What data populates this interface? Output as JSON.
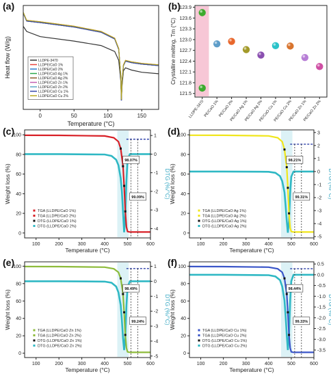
{
  "chart_data": [
    {
      "id": "a",
      "type": "line",
      "panel_label": "(a)",
      "xlabel": "Temperature (°C)",
      "ylabel": "Heat flow (W/g)",
      "xlim": [
        -25,
        175
      ],
      "xticks": [
        0,
        50,
        100,
        150
      ],
      "xtick_labels": [
        "0",
        "50",
        "100",
        "150"
      ],
      "legend_position": "bottom-left",
      "series": [
        {
          "name": "LLDPE-3470",
          "color": "#333333",
          "x": [
            -25,
            -20,
            0,
            50,
            90,
            110,
            116,
            119,
            120,
            121,
            123,
            126,
            135,
            150,
            175
          ],
          "y": [
            0.12,
            0.05,
            -0.02,
            -0.08,
            -0.14,
            -0.22,
            -0.34,
            -0.62,
            -0.88,
            -0.68,
            -0.48,
            -0.44,
            -0.47,
            -0.5,
            -0.52
          ]
        },
        {
          "name": "LLDPE/CaO 1%",
          "color": "#e8413c",
          "x": [
            -25,
            -20,
            0,
            50,
            90,
            110,
            116,
            119,
            120,
            121,
            123,
            126,
            135,
            150,
            175
          ],
          "y": [
            0.3,
            0.2,
            0.18,
            0.12,
            0.05,
            -0.04,
            -0.18,
            -0.55,
            -0.88,
            -0.62,
            -0.4,
            -0.34,
            -0.36,
            -0.38,
            -0.4
          ]
        },
        {
          "name": "LLDPE/CaO 2%",
          "color": "#2e7bd1",
          "x": [
            -25,
            -20,
            0,
            50,
            90,
            110,
            116,
            119,
            120,
            121,
            123,
            126,
            135,
            150,
            175
          ],
          "y": [
            0.3,
            0.19,
            0.17,
            0.11,
            0.04,
            -0.05,
            -0.19,
            -0.56,
            -0.88,
            -0.62,
            -0.41,
            -0.35,
            -0.37,
            -0.39,
            -0.41
          ]
        },
        {
          "name": "LLDPE/CaO Ag 1%",
          "color": "#2aa84a",
          "x": [
            -25,
            -20,
            0,
            50,
            90,
            110,
            116,
            119,
            120,
            121,
            123,
            126,
            135,
            150,
            175
          ],
          "y": [
            0.3,
            0.19,
            0.17,
            0.11,
            0.04,
            -0.05,
            -0.19,
            -0.56,
            -0.88,
            -0.62,
            -0.41,
            -0.35,
            -0.37,
            -0.39,
            -0.41
          ]
        },
        {
          "name": "LLDPE/CaO Ag 2%",
          "color": "#8b5a2b",
          "x": [
            -25,
            -20,
            0,
            50,
            90,
            110,
            116,
            119,
            120,
            121,
            123,
            126,
            135,
            150,
            175
          ],
          "y": [
            0.3,
            0.19,
            0.17,
            0.11,
            0.04,
            -0.05,
            -0.19,
            -0.56,
            -0.88,
            -0.62,
            -0.41,
            -0.35,
            -0.37,
            -0.39,
            -0.41
          ]
        },
        {
          "name": "LLDPE/CaO Zn 1%",
          "color": "#c05fb0",
          "x": [
            -25,
            -20,
            0,
            50,
            90,
            110,
            116,
            119,
            120,
            121,
            123,
            126,
            135,
            150,
            175
          ],
          "y": [
            0.3,
            0.19,
            0.17,
            0.11,
            0.04,
            -0.05,
            -0.19,
            -0.56,
            -0.88,
            -0.62,
            -0.41,
            -0.35,
            -0.37,
            -0.39,
            -0.41
          ]
        },
        {
          "name": "LLDPE/CaO Zn 2%",
          "color": "#5aa9c8",
          "x": [
            -25,
            -20,
            0,
            50,
            90,
            110,
            116,
            119,
            120,
            121,
            123,
            126,
            135,
            150,
            175
          ],
          "y": [
            0.3,
            0.19,
            0.17,
            0.11,
            0.04,
            -0.05,
            -0.19,
            -0.56,
            -0.88,
            -0.62,
            -0.41,
            -0.35,
            -0.37,
            -0.39,
            -0.41
          ]
        },
        {
          "name": "LLDPE/CaO Cu 1%",
          "color": "#3344a8",
          "x": [
            -25,
            -20,
            0,
            50,
            90,
            110,
            116,
            119,
            120,
            121,
            123,
            126,
            135,
            150,
            175
          ],
          "y": [
            0.3,
            0.19,
            0.17,
            0.11,
            0.04,
            -0.05,
            -0.19,
            -0.56,
            -0.88,
            -0.62,
            -0.41,
            -0.35,
            -0.37,
            -0.39,
            -0.41
          ]
        },
        {
          "name": "LLDPE/CaO Cu 2%",
          "color": "#b8a820",
          "x": [
            -25,
            -20,
            0,
            50,
            90,
            110,
            116,
            119,
            120,
            121,
            123,
            126,
            135,
            150,
            175
          ],
          "y": [
            0.31,
            0.2,
            0.18,
            0.12,
            0.05,
            -0.04,
            -0.18,
            -0.55,
            -0.87,
            -0.61,
            -0.4,
            -0.34,
            -0.36,
            -0.38,
            -0.4
          ]
        }
      ],
      "ylim": [
        -1.0,
        0.4
      ]
    },
    {
      "id": "b",
      "type": "scatter",
      "panel_label": "(b)",
      "ylabel": "Crystalline melting, Tm (°C)",
      "ylim": [
        121.4,
        123.95
      ],
      "yticks": [
        121.5,
        121.8,
        122.1,
        122.4,
        122.7,
        123.0,
        123.3,
        123.6,
        123.9
      ],
      "ytick_labels": [
        "121.5",
        "121.8",
        "122.1",
        "122.4",
        "122.7",
        "123.0",
        "123.3",
        "123.6",
        "123.9"
      ],
      "categories": [
        "LLDPE-3470",
        "PE/CaO 1%",
        "PE/CaO 2%",
        "PE/CaO Ag 1%",
        "PE/CaO Ag 2%",
        "PE/CaO Cu 1%",
        "PE/CaO Cu 2%",
        "PE/CaO Zn 1%",
        "PE/CaO Zn 2%"
      ],
      "values": [
        [
          123.75,
          121.65
        ],
        [
          122.88
        ],
        [
          122.95
        ],
        [
          122.72
        ],
        [
          122.57
        ],
        [
          122.83
        ],
        [
          122.82
        ],
        [
          122.5
        ],
        [
          122.25
        ]
      ],
      "colors": [
        "#3dab2e",
        "#5f9ec9",
        "#e8672c",
        "#a39a2a",
        "#8a4fb0",
        "#2bc3c9",
        "#d8742e",
        "#b77ed6",
        "#cf4fa4"
      ],
      "highlight_color": "#f7c7d6"
    },
    {
      "id": "c",
      "type": "line",
      "panel_label": "(c)",
      "xlabel": "Temperature (°C)",
      "ylabel": "Weight loss (%)",
      "y2label": "DTG (%/°C)",
      "xlim": [
        50,
        600
      ],
      "xticks": [
        100,
        200,
        300,
        400,
        500,
        600
      ],
      "ylim": [
        -5,
        105
      ],
      "yticks": [
        0,
        20,
        40,
        60,
        80,
        100
      ],
      "y2lim": [
        -4.5,
        1.3
      ],
      "y2ticks": [
        1,
        0,
        -1,
        -2,
        -3,
        -4
      ],
      "annotations": [
        "98.07%",
        "99.09%"
      ],
      "legend": [
        "TGA (LLDPE/CaO 1%)",
        "TGA (LLDPE/CaO 2%)",
        "DTG (LLDPE/CaO 1%)",
        "DTG (LLDPE/CaO 2%)"
      ],
      "tga": {
        "color": "#d81f26",
        "x": [
          50,
          200,
          400,
          440,
          460,
          470,
          480,
          485,
          490,
          495,
          500,
          510,
          600
        ],
        "y": [
          99.5,
          99.4,
          98.8,
          97,
          93,
          86,
          68,
          48,
          22,
          6,
          1.5,
          1,
          1
        ]
      },
      "dtg": {
        "color": "#2fb8c4",
        "x": [
          50,
          200,
          400,
          430,
          450,
          460,
          470,
          475,
          480,
          485,
          490,
          495,
          500,
          510,
          600
        ],
        "y": [
          0,
          0,
          -0.02,
          -0.1,
          -0.3,
          -0.6,
          -1.3,
          -2,
          -3.1,
          -4.2,
          -3.3,
          -1.4,
          -0.3,
          0,
          0
        ]
      },
      "dashed_color": "#2c3fa8",
      "dashed_y": 0.8
    },
    {
      "id": "d",
      "type": "line",
      "panel_label": "(d)",
      "xlabel": "Temperature (°C)",
      "ylabel": "Weight loss (%)",
      "y2label": "DTG (%/°C)",
      "xlim": [
        50,
        600
      ],
      "xticks": [
        100,
        200,
        300,
        400,
        500,
        600
      ],
      "ylim": [
        -5,
        105
      ],
      "yticks": [
        0,
        20,
        40,
        60,
        80,
        100
      ],
      "y2lim": [
        -5.1,
        3.2
      ],
      "y2ticks": [
        3,
        2,
        1,
        0,
        -1,
        -2,
        -3,
        -4,
        -5
      ],
      "annotations": [
        "98.21%",
        "99.31%"
      ],
      "legend": [
        "TGA (LLDPE/CaO Ag 1%)",
        "TGA (LLDPE/CaO Ag 2%)",
        "DTG (LLDPE/CaO Ag 1%)",
        "DTG (LLDPE/CaO Ag 2%)"
      ],
      "tga": {
        "color": "#f0e61a",
        "x": [
          50,
          200,
          400,
          440,
          460,
          470,
          480,
          485,
          490,
          495,
          500,
          510,
          600
        ],
        "y": [
          99.6,
          99.5,
          98.9,
          97,
          93,
          85,
          67,
          46,
          20,
          5,
          1.5,
          1,
          1
        ]
      },
      "dtg": {
        "color": "#2fb8c4",
        "x": [
          50,
          200,
          400,
          430,
          450,
          460,
          470,
          475,
          480,
          485,
          490,
          495,
          500,
          510,
          600
        ],
        "y": [
          0,
          0,
          -0.02,
          -0.1,
          -0.35,
          -0.75,
          -1.6,
          -2.6,
          -3.8,
          -4.7,
          -3.8,
          -1.6,
          -0.4,
          0,
          0
        ]
      },
      "dashed_color": "#2c3fa8",
      "dashed_y": 2.1
    },
    {
      "id": "e",
      "type": "line",
      "panel_label": "(e)",
      "xlabel": "Temperature (°C)",
      "ylabel": "Weight loss (%)",
      "y2label": "DTG (%/°C)",
      "xlim": [
        50,
        600
      ],
      "xticks": [
        100,
        200,
        300,
        400,
        500,
        600
      ],
      "ylim": [
        -5,
        105
      ],
      "yticks": [
        0,
        20,
        40,
        60,
        80,
        100
      ],
      "y2lim": [
        -5.1,
        1.3
      ],
      "y2ticks": [
        1,
        0,
        -1,
        -2,
        -3,
        -4,
        -5
      ],
      "annotations": [
        "98.49%",
        "99.24%"
      ],
      "legend": [
        "TGA (LLDPE/CaO Zn 1%)",
        "TGA (LLDPE/CaO Zn 2%)",
        "DTG (LLDPE/CaO Zn 1%)",
        "DTG (LLDPE/CaO Zn 2%)"
      ],
      "tga": {
        "color": "#8dbb3a",
        "x": [
          50,
          200,
          400,
          440,
          460,
          470,
          480,
          485,
          490,
          495,
          500,
          510,
          600
        ],
        "y": [
          99.6,
          99.5,
          98.9,
          97,
          93,
          86,
          68,
          47,
          21,
          6,
          1.5,
          1,
          1
        ]
      },
      "dtg": {
        "color": "#2fb8c4",
        "x": [
          50,
          200,
          400,
          430,
          450,
          460,
          470,
          475,
          480,
          485,
          490,
          495,
          500,
          510,
          600
        ],
        "y": [
          0,
          0,
          -0.02,
          -0.1,
          -0.35,
          -0.75,
          -1.6,
          -2.6,
          -3.8,
          -4.6,
          -3.7,
          -1.6,
          -0.4,
          0,
          0
        ]
      },
      "dashed_color": "#2c3fa8",
      "dashed_y": 0.85
    },
    {
      "id": "f",
      "type": "line",
      "panel_label": "(f)",
      "xlabel": "Temperature (°C)",
      "ylabel": "Weight loss (%)",
      "y2label": "DTG (%/°C)",
      "xlim": [
        50,
        600
      ],
      "xticks": [
        100,
        200,
        300,
        400,
        500,
        600
      ],
      "ylim": [
        -5,
        105
      ],
      "yticks": [
        0,
        20,
        40,
        60,
        80,
        100
      ],
      "y2lim": [
        -3.85,
        0.6
      ],
      "y2ticks": [
        0.5,
        0.0,
        -0.5,
        -1.0,
        -1.5,
        -2.0,
        -2.5,
        -3.0,
        -3.5
      ],
      "y2tick_labels": [
        "0.5",
        "0.0",
        "-0.5",
        "-1.0",
        "-1.5",
        "-2.0",
        "-2.5",
        "-3.0",
        "-3.5"
      ],
      "annotations": [
        "98.44%",
        "99.33%"
      ],
      "legend": [
        "TGA (LLDPE/CaO Cu 1%)",
        "TGA (LLDPE/CaO Cu 2%)",
        "DTG (LLDPE/CaO Cu 1%)",
        "DTG (LLDPE/CaO Cu 2%)"
      ],
      "tga": {
        "color": "#3a55c8",
        "x": [
          50,
          200,
          400,
          440,
          460,
          470,
          480,
          485,
          490,
          495,
          500,
          510,
          600
        ],
        "y": [
          99.6,
          99.5,
          98.9,
          97,
          93,
          86,
          68,
          47,
          21,
          6,
          1.5,
          1,
          1
        ]
      },
      "dtg": {
        "color": "#2fb8c4",
        "x": [
          50,
          200,
          400,
          430,
          450,
          460,
          470,
          475,
          480,
          485,
          490,
          495,
          500,
          510,
          600
        ],
        "y": [
          0,
          0,
          -0.02,
          -0.08,
          -0.25,
          -0.55,
          -1.2,
          -1.9,
          -2.8,
          -3.5,
          -2.8,
          -1.2,
          -0.3,
          0,
          0
        ]
      },
      "dashed_color": "#2c3fa8",
      "dashed_y": 0.28
    }
  ]
}
